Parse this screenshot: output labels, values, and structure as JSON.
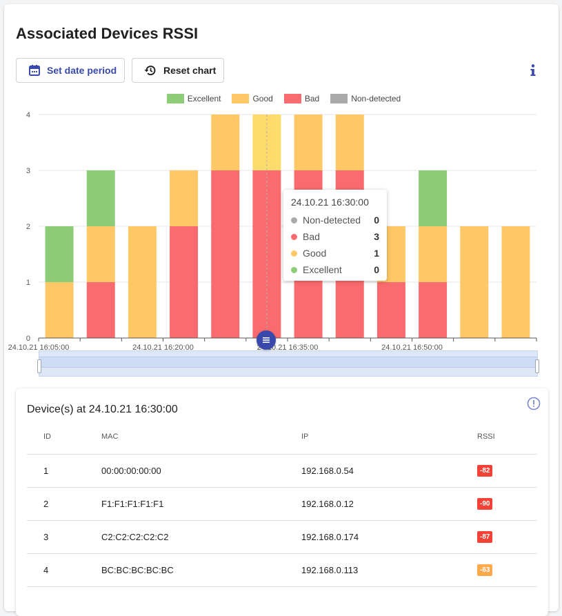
{
  "title": "Associated Devices RSSI",
  "toolbar": {
    "date_label": "Set date period",
    "reset_label": "Reset chart"
  },
  "colors": {
    "excellent": "#8dcd78",
    "good": "#fec866",
    "bad": "#f96b6e",
    "nondetected": "#aaaaaa",
    "accent": "#3949ab",
    "hover_good": "#ffdb6b"
  },
  "chart_data": {
    "type": "bar",
    "stacked": true,
    "legend_position": "top",
    "grid": true,
    "ylim": [
      0,
      4
    ],
    "yticks": [
      0,
      1,
      2,
      3,
      4
    ],
    "x_tick_labels": [
      "24.10.21 16:05:00",
      "24.10.21 16:20:00",
      "24.10.21 16:35:00",
      "24.10.21 16:50:00"
    ],
    "categories": [
      "24.10.21 16:05:00",
      "24.10.21 16:10:00",
      "24.10.21 16:15:00",
      "24.10.21 16:20:00",
      "24.10.21 16:25:00",
      "24.10.21 16:30:00",
      "24.10.21 16:35:00",
      "24.10.21 16:40:00",
      "24.10.21 16:45:00",
      "24.10.21 16:50:00",
      "24.10.21 16:55:00",
      "24.10.21 17:00:00"
    ],
    "series": [
      {
        "name": "Excellent",
        "values": [
          1,
          1,
          0,
          0,
          0,
          0,
          0,
          0,
          0,
          1,
          0,
          0
        ]
      },
      {
        "name": "Good",
        "values": [
          1,
          1,
          2,
          1,
          1,
          1,
          1,
          1,
          1,
          1,
          2,
          2
        ]
      },
      {
        "name": "Bad",
        "values": [
          0,
          1,
          0,
          2,
          3,
          3,
          3,
          3,
          1,
          1,
          0,
          0
        ]
      },
      {
        "name": "Non-detected",
        "values": [
          0,
          0,
          0,
          0,
          0,
          0,
          0,
          0,
          0,
          0,
          0,
          0
        ]
      }
    ],
    "highlighted_index": 5
  },
  "tooltip": {
    "time": "24.10.21 16:30:00",
    "rows": [
      {
        "label": "Non-detected",
        "value": "0"
      },
      {
        "label": "Bad",
        "value": "3"
      },
      {
        "label": "Good",
        "value": "1"
      },
      {
        "label": "Excellent",
        "value": "0"
      }
    ]
  },
  "devices": {
    "title": "Device(s) at 24.10.21 16:30:00",
    "columns": [
      "ID",
      "MAC",
      "IP",
      "RSSI"
    ],
    "rows": [
      {
        "id": "1",
        "mac": "00:00:00:00:00",
        "ip": "192.168.0.54",
        "rssi": "-82",
        "rssi_color": "#f44336"
      },
      {
        "id": "2",
        "mac": "F1:F1:F1:F1:F1",
        "ip": "192.168.0.12",
        "rssi": "-90",
        "rssi_color": "#f44336"
      },
      {
        "id": "3",
        "mac": "C2:C2:C2:C2:C2",
        "ip": "192.168.0.174",
        "rssi": "-87",
        "rssi_color": "#f44336"
      },
      {
        "id": "4",
        "mac": "BC:BC:BC:BC:BC",
        "ip": "192.168.0.113",
        "rssi": "-63",
        "rssi_color": "#ffa94d"
      }
    ]
  }
}
